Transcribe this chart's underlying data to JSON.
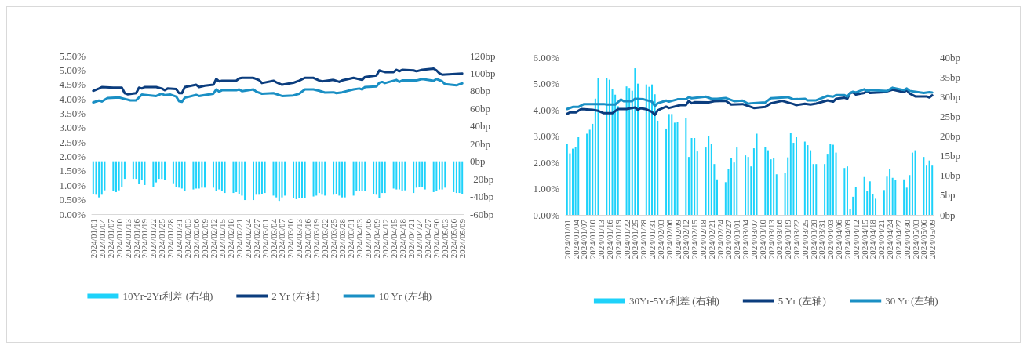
{
  "chart_data": [
    {
      "type": "bar",
      "categories": [
        "2024/01/01",
        null,
        null,
        "2024/01/04",
        null,
        null,
        "2024/01/07",
        null,
        null,
        "2024/01/10",
        null,
        null,
        "2024/01/13",
        null,
        null,
        "2024/01/16",
        null,
        null,
        "2024/01/19",
        null,
        null,
        "2024/01/22",
        null,
        null,
        "2024/01/25",
        null,
        null,
        "2024/01/28",
        null,
        null,
        "2024/01/31",
        null,
        null,
        "2024/02/03",
        null,
        null,
        "2024/02/06",
        null,
        null,
        "2024/02/09",
        null,
        null,
        "2024/02/12",
        null,
        null,
        "2024/02/15",
        null,
        null,
        "2024/02/18",
        null,
        null,
        "2024/02/21",
        null,
        null,
        "2024/02/24",
        null,
        null,
        "2024/02/27",
        null,
        null,
        "2024/03/01",
        null,
        null,
        "2024/03/04",
        null,
        null,
        "2024/03/07",
        null,
        null,
        "2024/03/10",
        null,
        null,
        "2024/03/13",
        null,
        null,
        "2024/03/16",
        null,
        null,
        "2024/03/19",
        null,
        null,
        "2024/03/22",
        null,
        null,
        "2024/03/25",
        null,
        null,
        "2024/03/28",
        null,
        null,
        "2024/03/31",
        null,
        null,
        "2024/04/03",
        null,
        null,
        "2024/04/06",
        null,
        null,
        "2024/04/09",
        null,
        null,
        "2024/04/12",
        null,
        null,
        "2024/04/15",
        null,
        null,
        "2024/04/18",
        null,
        null,
        "2024/04/21",
        null,
        null,
        "2024/04/24",
        null,
        null,
        "2024/04/27",
        null,
        null,
        "2024/04/30",
        null,
        null,
        "2024/05/03",
        null,
        null,
        "2024/05/06",
        null,
        null,
        "2024/05/09"
      ],
      "series": [
        {
          "name": "10Yr-2Yr利差 (右轴)",
          "axis": "y2",
          "color": "#1ed2fa",
          "values": [
            -37,
            -38,
            -41,
            -38,
            -33,
            null,
            null,
            -34,
            -35,
            -33,
            -29,
            -20,
            null,
            null,
            -20,
            -20,
            -26,
            -21,
            -27,
            null,
            null,
            -29,
            -24,
            -20,
            -20,
            -21,
            null,
            null,
            -25,
            -29,
            -30,
            -31,
            -34,
            null,
            null,
            -32,
            -31,
            -31,
            -30,
            -30,
            null,
            null,
            -30,
            -34,
            -32,
            -34,
            -36,
            null,
            null,
            -36,
            -35,
            -37,
            -39,
            -44,
            null,
            null,
            -44,
            -38,
            -38,
            -37,
            -36,
            null,
            null,
            -39,
            -41,
            -45,
            -41,
            -39,
            null,
            null,
            -42,
            -43,
            -42,
            -42,
            -42,
            null,
            null,
            -40,
            -39,
            -36,
            -38,
            -39,
            null,
            null,
            -38,
            -37,
            -39,
            -41,
            -41,
            null,
            null,
            -39,
            -34,
            -34,
            -34,
            -34,
            null,
            null,
            -37,
            -38,
            -42,
            -36,
            -36,
            null,
            null,
            -31,
            -32,
            -32,
            -34,
            -33,
            null,
            null,
            -36,
            -30,
            -29,
            -29,
            -32,
            null,
            null,
            -35,
            -34,
            -32,
            -32,
            -30,
            null,
            null,
            -35,
            -36,
            -36,
            -37
          ]
        },
        {
          "name": "2 Yr (左轴)",
          "type": "line",
          "color": "#0b3d7e",
          "values": [
            4.28,
            null,
            4.36,
            4.41,
            null,
            null,
            null,
            4.39,
            null,
            null,
            4.39,
            4.2,
            4.16,
            null,
            null,
            4.2,
            4.39,
            4.36,
            4.41,
            null,
            null,
            null,
            4.41,
            null,
            4.36,
            4.3,
            4.36,
            null,
            null,
            4.34,
            4.2,
            4.2,
            4.41,
            null,
            null,
            null,
            4.49,
            4.41,
            null,
            4.46,
            null,
            null,
            4.49,
            4.69,
            4.61,
            4.63,
            null,
            null,
            null,
            null,
            4.63,
            4.71,
            4.73,
            null,
            null,
            null,
            4.73,
            null,
            4.65,
            4.55,
            null,
            null,
            null,
            4.63,
            4.58,
            null,
            4.49,
            null,
            null,
            null,
            4.56,
            null,
            4.63,
            null,
            4.73,
            null,
            null,
            4.73,
            null,
            4.64,
            4.61,
            null,
            null,
            null,
            4.66,
            null,
            4.59,
            4.64,
            null,
            null,
            null,
            4.73,
            null,
            null,
            4.66,
            4.76,
            null,
            null,
            null,
            4.81,
            4.99,
            4.96,
            4.93,
            null,
            null,
            4.93,
            5.01,
            4.96,
            5.01,
            null,
            null,
            null,
            4.99,
            4.96,
            null,
            5.01,
            null,
            null,
            null,
            5.05,
            4.99,
            4.89,
            4.84,
            null,
            null,
            null,
            null,
            null,
            null,
            4.88
          ]
        },
        {
          "name": "10 Yr (左轴)",
          "type": "line",
          "color": "#1a8fc4",
          "values": [
            3.88,
            null,
            3.94,
            3.91,
            null,
            4.03,
            null,
            null,
            null,
            4.05,
            null,
            4.0,
            null,
            3.95,
            null,
            3.95,
            4.05,
            4.15,
            4.14,
            null,
            null,
            null,
            4.1,
            null,
            4.18,
            4.13,
            null,
            4.15,
            null,
            4.08,
            3.92,
            3.9,
            4.04,
            null,
            null,
            null,
            4.14,
            4.1,
            null,
            null,
            null,
            null,
            4.18,
            4.33,
            4.25,
            4.3,
            null,
            null,
            null,
            null,
            4.3,
            4.33,
            4.27,
            null,
            null,
            null,
            4.33,
            4.25,
            null,
            4.18,
            null,
            null,
            null,
            4.2,
            null,
            null,
            4.1,
            null,
            null,
            null,
            4.12,
            null,
            4.18,
            null,
            4.33,
            null,
            null,
            4.33,
            null,
            4.28,
            null,
            4.22,
            null,
            null,
            4.23,
            4.2,
            null,
            4.23,
            null,
            null,
            null,
            4.33,
            null,
            4.36,
            4.33,
            4.41,
            null,
            null,
            null,
            4.43,
            4.56,
            4.59,
            4.55,
            null,
            null,
            null,
            4.66,
            4.59,
            4.64,
            null,
            null,
            null,
            null,
            4.64,
            null,
            4.69,
            null,
            null,
            null,
            4.63,
            4.69,
            null,
            4.61,
            4.51,
            null,
            null,
            null,
            4.47,
            4.51,
            4.54
          ]
        }
      ],
      "ylim": [
        0,
        5.5
      ],
      "yticks": [
        {
          "value": 0,
          "label": "0.00%"
        },
        {
          "value": 0.5,
          "label": "0.50%"
        },
        {
          "value": 1,
          "label": "1.00%"
        },
        {
          "value": 1.5,
          "label": "1.50%"
        },
        {
          "value": 2,
          "label": "2.00%"
        },
        {
          "value": 2.5,
          "label": "2.50%"
        },
        {
          "value": 3,
          "label": "3.00%"
        },
        {
          "value": 3.5,
          "label": "3.50%"
        },
        {
          "value": 4,
          "label": "4.00%"
        },
        {
          "value": 4.5,
          "label": "4.50%"
        },
        {
          "value": 5,
          "label": "5.00%"
        },
        {
          "value": 5.5,
          "label": "5.50%"
        }
      ],
      "y2lim": [
        -60,
        120
      ],
      "y2ticks": [
        {
          "value": -60,
          "label": "-60bp"
        },
        {
          "value": -40,
          "label": "-40bp"
        },
        {
          "value": -20,
          "label": "-20bp"
        },
        {
          "value": 0,
          "label": "0bp"
        },
        {
          "value": 20,
          "label": "20bp"
        },
        {
          "value": 40,
          "label": "40bp"
        },
        {
          "value": 60,
          "label": "60bp"
        },
        {
          "value": 80,
          "label": "80bp"
        },
        {
          "value": 100,
          "label": "100bp"
        },
        {
          "value": 120,
          "label": "120bp"
        }
      ],
      "grid": false,
      "legend": "bottom",
      "marker": "none",
      "line_style": "solid"
    },
    {
      "type": "bar",
      "categories": [
        "2024/01/01",
        null,
        null,
        "2024/01/04",
        null,
        null,
        "2024/01/07",
        null,
        null,
        "2024/01/10",
        null,
        null,
        "2024/01/13",
        null,
        null,
        "2024/01/16",
        null,
        null,
        "2024/01/19",
        null,
        null,
        "2024/01/22",
        null,
        null,
        "2024/01/25",
        null,
        null,
        "2024/01/28",
        null,
        null,
        "2024/01/31",
        null,
        null,
        "2024/02/03",
        null,
        null,
        "2024/02/06",
        null,
        null,
        "2024/02/09",
        null,
        null,
        "2024/02/12",
        null,
        null,
        "2024/02/15",
        null,
        null,
        "2024/02/18",
        null,
        null,
        "2024/02/21",
        null,
        null,
        "2024/02/24",
        null,
        null,
        "2024/02/27",
        null,
        null,
        "2024/03/01",
        null,
        null,
        "2024/03/04",
        null,
        null,
        "2024/03/07",
        null,
        null,
        "2024/03/10",
        null,
        null,
        "2024/03/13",
        null,
        null,
        "2024/03/16",
        null,
        null,
        "2024/03/19",
        null,
        null,
        "2024/03/22",
        null,
        null,
        "2024/03/25",
        null,
        null,
        "2024/03/28",
        null,
        null,
        "2024/03/31",
        null,
        null,
        "2024/04/03",
        null,
        null,
        "2024/04/06",
        null,
        null,
        "2024/04/09",
        null,
        null,
        "2024/04/12",
        null,
        null,
        "2024/04/15",
        null,
        null,
        "2024/04/18",
        null,
        null,
        "2024/04/21",
        null,
        null,
        "2024/04/24",
        null,
        null,
        "2024/04/27",
        null,
        null,
        "2024/04/30",
        null,
        null,
        "2024/05/03",
        null,
        null,
        "2024/05/06",
        null,
        null,
        "2024/05/09"
      ],
      "series": [
        {
          "name": "30Yr-5Yr利差 (右轴)",
          "axis": "y2",
          "color": "#1ed2fa",
          "values": [
            18.0,
            15.6,
            16.8,
            17.2,
            19.7,
            null,
            null,
            20.6,
            21.6,
            23.1,
            29.5,
            34.8,
            null,
            null,
            34.8,
            34.3,
            31.9,
            30.5,
            27.6,
            null,
            null,
            32.6,
            32.2,
            31.5,
            37.2,
            33.3,
            null,
            null,
            33.1,
            32.5,
            33.1,
            30.6,
            23.9,
            null,
            null,
            21.9,
            25.6,
            25.6,
            23.4,
            23.6,
            null,
            null,
            24.5,
            14.7,
            19.5,
            19.5,
            16.1,
            null,
            null,
            17.1,
            20.0,
            18.0,
            12.9,
            9.0,
            null,
            null,
            8.3,
            11.6,
            14.5,
            13.3,
            17.1,
            null,
            null,
            15.1,
            14.7,
            12.3,
            16.9,
            20.6,
            null,
            null,
            17.3,
            16.4,
            14.1,
            14.5,
            10.3,
            null,
            null,
            10.6,
            14.6,
            20.8,
            18.3,
            19.7,
            null,
            null,
            18.6,
            17.7,
            16.4,
            12.9,
            12.9,
            null,
            null,
            12.9,
            15.5,
            18.0,
            17.8,
            15.8,
            null,
            null,
            11.9,
            12.3,
            1.6,
            4.6,
            7.0,
            null,
            null,
            9.6,
            6.0,
            8.5,
            5.2,
            4.1,
            null,
            null,
            6.3,
            9.7,
            11.6,
            9.4,
            8.8,
            null,
            null,
            9.0,
            6.9,
            10.1,
            15.8,
            16.4,
            null,
            null,
            14.7,
            12.5,
            13.8,
            12.5
          ]
        },
        {
          "name": "5 Yr (左轴)",
          "type": "line",
          "color": "#0b3d7e",
          "values": [
            3.85,
            3.9,
            null,
            3.9,
            null,
            4.03,
            null,
            null,
            null,
            4.0,
            null,
            3.96,
            null,
            3.87,
            null,
            null,
            3.87,
            null,
            4.03,
            null,
            null,
            4.03,
            null,
            null,
            4.09,
            4.0,
            4.06,
            null,
            4.02,
            null,
            3.92,
            3.81,
            3.98,
            null,
            null,
            4.12,
            4.07,
            null,
            null,
            null,
            4.18,
            null,
            4.18,
            4.34,
            4.25,
            4.29,
            null,
            null,
            null,
            null,
            4.28,
            null,
            4.33,
            null,
            null,
            null,
            4.34,
            null,
            4.2,
            null,
            null,
            null,
            4.22,
            null,
            null,
            null,
            4.07,
            null,
            null,
            null,
            4.11,
            null,
            4.25,
            null,
            null,
            null,
            4.34,
            null,
            4.28,
            null,
            4.22,
            4.18,
            null,
            null,
            4.23,
            null,
            4.2,
            null,
            4.24,
            null,
            null,
            null,
            4.36,
            null,
            4.31,
            4.42,
            null,
            null,
            4.46,
            4.42,
            4.64,
            4.66,
            4.58,
            null,
            null,
            4.64,
            4.72,
            4.64,
            null,
            null,
            null,
            null,
            4.67,
            null,
            null,
            4.77,
            null,
            null,
            null,
            4.67,
            4.75,
            4.62,
            null,
            4.51,
            null,
            null,
            null,
            4.51,
            4.47,
            4.55
          ]
        },
        {
          "name": "30 Yr (左轴)",
          "type": "line",
          "color": "#1a8fc4",
          "values": [
            4.03,
            null,
            4.11,
            null,
            4.11,
            null,
            4.22,
            null,
            null,
            null,
            null,
            null,
            null,
            4.22,
            4.2,
            null,
            null,
            4.2,
            null,
            4.39,
            4.33,
            null,
            null,
            4.33,
            4.42,
            null,
            null,
            4.4,
            null,
            null,
            4.31,
            4.14,
            4.25,
            null,
            null,
            4.35,
            4.31,
            null,
            null,
            4.4,
            null,
            null,
            4.4,
            4.48,
            4.44,
            null,
            null,
            null,
            null,
            4.5,
            null,
            4.42,
            null,
            4.42,
            null,
            null,
            4.45,
            null,
            null,
            4.33,
            null,
            null,
            4.35,
            null,
            4.23,
            4.25,
            null,
            null,
            null,
            null,
            4.28,
            null,
            4.44,
            null,
            null,
            null,
            null,
            null,
            4.48,
            null,
            4.4,
            null,
            null,
            null,
            4.42,
            4.36,
            null,
            null,
            4.36,
            null,
            null,
            null,
            4.53,
            null,
            4.5,
            4.56,
            null,
            null,
            4.56,
            4.5,
            4.64,
            4.69,
            4.66,
            null,
            null,
            4.78,
            4.72,
            4.75,
            null,
            null,
            null,
            null,
            null,
            4.72,
            4.78,
            4.84,
            null,
            null,
            null,
            4.75,
            4.81,
            4.72,
            null,
            null,
            null,
            null,
            4.64,
            null,
            4.67,
            4.66
          ]
        }
      ],
      "ylim": [
        0,
        6
      ],
      "yticks": [
        {
          "value": 0,
          "label": "0.00%"
        },
        {
          "value": 1,
          "label": "1.00%"
        },
        {
          "value": 2,
          "label": "2.00%"
        },
        {
          "value": 3,
          "label": "3.00%"
        },
        {
          "value": 4,
          "label": "4.00%"
        },
        {
          "value": 5,
          "label": "5.00%"
        },
        {
          "value": 6,
          "label": "6.00%"
        }
      ],
      "y2lim": [
        0,
        40
      ],
      "y2ticks": [
        {
          "value": 0,
          "label": "0bp"
        },
        {
          "value": 5,
          "label": "5bp"
        },
        {
          "value": 10,
          "label": "10bp"
        },
        {
          "value": 15,
          "label": "15bp"
        },
        {
          "value": 20,
          "label": "20bp"
        },
        {
          "value": 25,
          "label": "25bp"
        },
        {
          "value": 30,
          "label": "30bp"
        },
        {
          "value": 35,
          "label": "35bp"
        },
        {
          "value": 40,
          "label": "40bp"
        }
      ],
      "grid": false,
      "legend": "bottom",
      "marker": "none",
      "line_style": "solid"
    }
  ]
}
